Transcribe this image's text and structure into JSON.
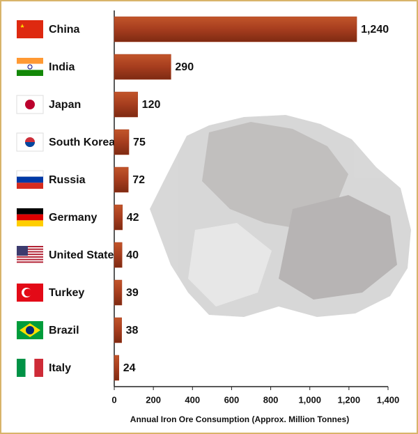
{
  "chart_data": {
    "type": "bar",
    "orientation": "horizontal",
    "categories": [
      "China",
      "India",
      "Japan",
      "South Korea",
      "Russia",
      "Germany",
      "United States",
      "Turkey",
      "Brazil",
      "Italy"
    ],
    "values": [
      1240,
      290,
      120,
      75,
      72,
      42,
      40,
      39,
      38,
      24
    ],
    "value_labels": [
      "1,240",
      "290",
      "120",
      "75",
      "72",
      "42",
      "40",
      "39",
      "38",
      "24"
    ],
    "color": "#a63d1e",
    "xlabel": "Annual Iron Ore Consumption (Approx. Million Tonnes)",
    "xlim": [
      0,
      1400
    ],
    "xticks": [
      0,
      200,
      400,
      600,
      800,
      {
        "value": 1000,
        "label": "1,000"
      },
      {
        "value": 1200,
        "label": "1,200"
      },
      {
        "value": 1400,
        "label": "1,400"
      }
    ]
  }
}
